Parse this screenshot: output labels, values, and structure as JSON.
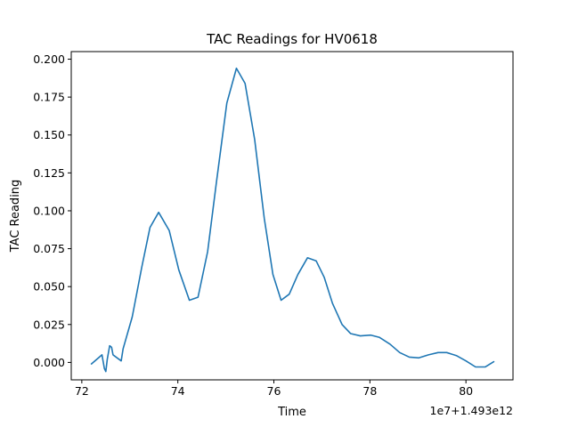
{
  "chart_data": {
    "type": "line",
    "title": "TAC Readings for HV0618",
    "xlabel": "Time",
    "ylabel": "TAC Reading",
    "offset_label": "1e7+1.493e12",
    "grid": false,
    "xlim": [
      71.78,
      80.98
    ],
    "ylim": [
      -0.0115,
      0.205
    ],
    "xticks": [
      72,
      74,
      76,
      78,
      80
    ],
    "xtick_labels": [
      "72",
      "74",
      "76",
      "78",
      "80"
    ],
    "yticks": [
      0.0,
      0.025,
      0.05,
      0.075,
      0.1,
      0.125,
      0.15,
      0.175,
      0.2
    ],
    "ytick_labels": [
      "0.000",
      "0.025",
      "0.050",
      "0.075",
      "0.100",
      "0.125",
      "0.150",
      "0.175",
      "0.200"
    ],
    "series": [
      {
        "color": "#1f77b4",
        "x": [
          72.2,
          72.42,
          72.47,
          72.5,
          72.53,
          72.58,
          72.62,
          72.65,
          72.82,
          72.86,
          73.05,
          73.25,
          73.42,
          73.6,
          73.82,
          74.02,
          74.24,
          74.42,
          74.62,
          74.8,
          75.02,
          75.22,
          75.4,
          75.6,
          75.8,
          75.98,
          76.15,
          76.32,
          76.5,
          76.7,
          76.88,
          77.05,
          77.22,
          77.42,
          77.6,
          77.8,
          78.02,
          78.2,
          78.42,
          78.62,
          78.82,
          79.02,
          79.22,
          79.42,
          79.6,
          79.8,
          80.0,
          80.2,
          80.4,
          80.58
        ],
        "y": [
          -0.001,
          0.005,
          -0.004,
          -0.006,
          0.002,
          0.011,
          0.01,
          0.005,
          0.001,
          0.009,
          0.03,
          0.063,
          0.089,
          0.099,
          0.087,
          0.061,
          0.041,
          0.043,
          0.073,
          0.118,
          0.171,
          0.194,
          0.184,
          0.147,
          0.095,
          0.058,
          0.041,
          0.045,
          0.058,
          0.069,
          0.067,
          0.056,
          0.039,
          0.025,
          0.019,
          0.0175,
          0.018,
          0.0165,
          0.012,
          0.0065,
          0.0035,
          0.003,
          0.005,
          0.0065,
          0.0065,
          0.0045,
          0.001,
          -0.003,
          -0.003,
          0.0005
        ]
      }
    ]
  }
}
